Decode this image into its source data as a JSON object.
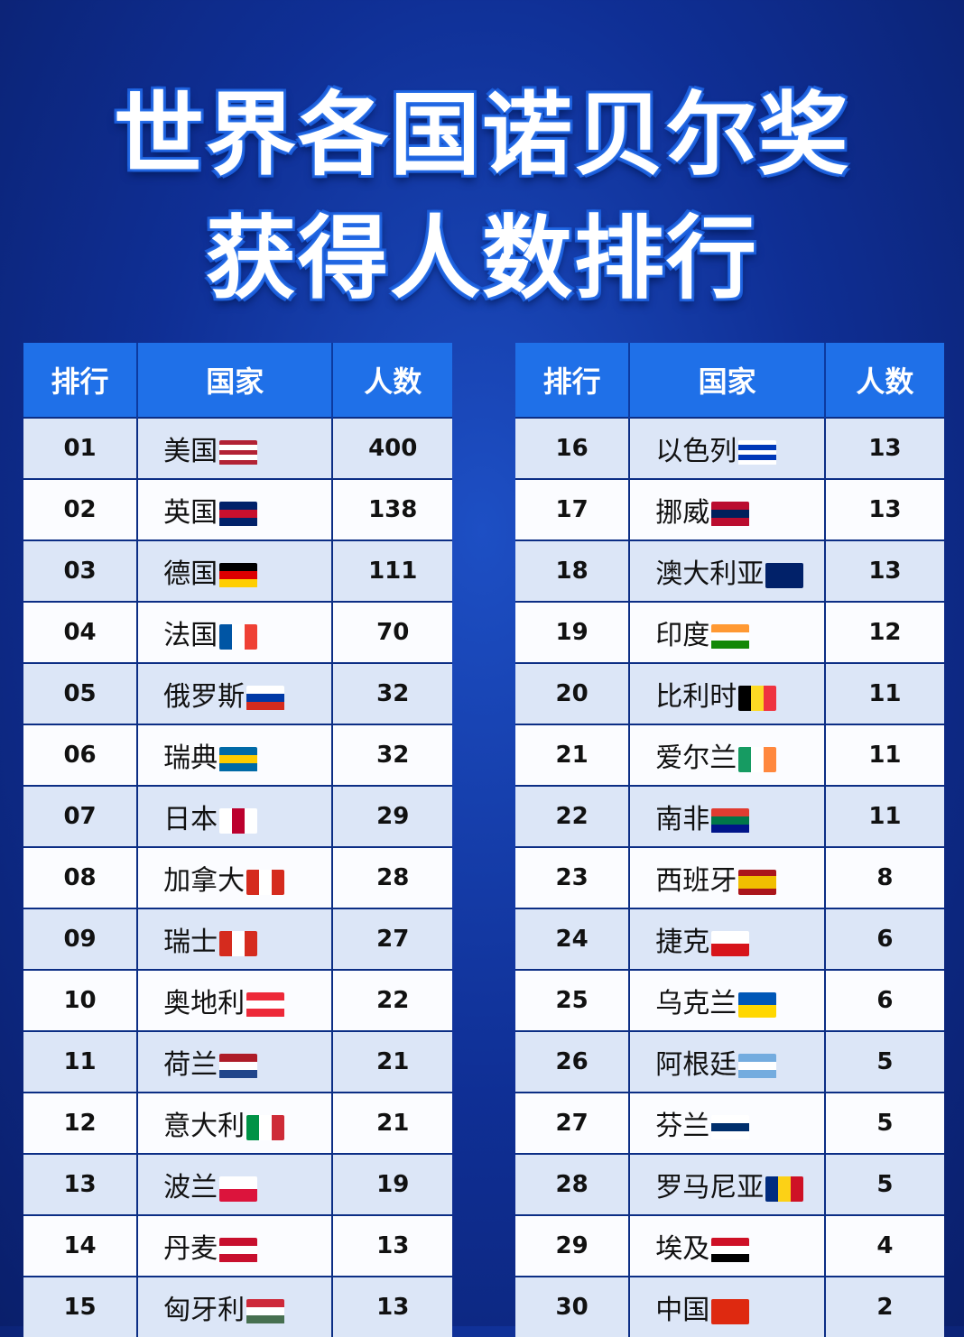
{
  "title": {
    "line1": "世界各国诺贝尔奖",
    "line2": "获得人数排行"
  },
  "headers": {
    "rank": "排行",
    "country": "国家",
    "count": "人数"
  },
  "left": [
    {
      "rank": "01",
      "country": "美国",
      "count": "400",
      "flag": {
        "dir": "column",
        "colors": [
          "#b22234",
          "#ffffff",
          "#b22234",
          "#ffffff",
          "#b22234"
        ]
      }
    },
    {
      "rank": "02",
      "country": "英国",
      "count": "138",
      "flag": {
        "dir": "column",
        "colors": [
          "#012169",
          "#c8102e",
          "#012169"
        ]
      }
    },
    {
      "rank": "03",
      "country": "德国",
      "count": "111",
      "flag": {
        "dir": "column",
        "colors": [
          "#000000",
          "#dd0000",
          "#ffce00"
        ]
      }
    },
    {
      "rank": "04",
      "country": "法国",
      "count": "70",
      "flag": {
        "dir": "row",
        "colors": [
          "#0055a4",
          "#ffffff",
          "#ef4135"
        ]
      }
    },
    {
      "rank": "05",
      "country": "俄罗斯",
      "count": "32",
      "flag": {
        "dir": "column",
        "colors": [
          "#ffffff",
          "#0039a6",
          "#d52b1e"
        ]
      }
    },
    {
      "rank": "06",
      "country": "瑞典",
      "count": "32",
      "flag": {
        "dir": "column",
        "colors": [
          "#006aa7",
          "#fecc00",
          "#006aa7"
        ]
      }
    },
    {
      "rank": "07",
      "country": "日本",
      "count": "29",
      "flag": {
        "dir": "row",
        "colors": [
          "#ffffff",
          "#bc002d",
          "#ffffff"
        ]
      }
    },
    {
      "rank": "08",
      "country": "加拿大",
      "count": "28",
      "flag": {
        "dir": "row",
        "colors": [
          "#d52b1e",
          "#ffffff",
          "#d52b1e"
        ]
      }
    },
    {
      "rank": "09",
      "country": "瑞士",
      "count": "27",
      "flag": {
        "dir": "row",
        "colors": [
          "#d52b1e",
          "#ffffff",
          "#d52b1e"
        ]
      }
    },
    {
      "rank": "10",
      "country": "奥地利",
      "count": "22",
      "flag": {
        "dir": "column",
        "colors": [
          "#ed2939",
          "#ffffff",
          "#ed2939"
        ]
      }
    },
    {
      "rank": "11",
      "country": "荷兰",
      "count": "21",
      "flag": {
        "dir": "column",
        "colors": [
          "#ae1c28",
          "#ffffff",
          "#21468b"
        ]
      }
    },
    {
      "rank": "12",
      "country": "意大利",
      "count": "21",
      "flag": {
        "dir": "row",
        "colors": [
          "#009246",
          "#ffffff",
          "#ce2b37"
        ]
      }
    },
    {
      "rank": "13",
      "country": "波兰",
      "count": "19",
      "flag": {
        "dir": "column",
        "colors": [
          "#ffffff",
          "#dc143c"
        ]
      }
    },
    {
      "rank": "14",
      "country": "丹麦",
      "count": "13",
      "flag": {
        "dir": "column",
        "colors": [
          "#c8102e",
          "#ffffff",
          "#c8102e"
        ]
      }
    },
    {
      "rank": "15",
      "country": "匈牙利",
      "count": "13",
      "flag": {
        "dir": "column",
        "colors": [
          "#ce2939",
          "#ffffff",
          "#477050"
        ]
      }
    }
  ],
  "right": [
    {
      "rank": "16",
      "country": "以色列",
      "count": "13",
      "flag": {
        "dir": "column",
        "colors": [
          "#ffffff",
          "#0038b8",
          "#ffffff",
          "#0038b8",
          "#ffffff"
        ]
      }
    },
    {
      "rank": "17",
      "country": "挪威",
      "count": "13",
      "flag": {
        "dir": "column",
        "colors": [
          "#ba0c2f",
          "#00205b",
          "#ba0c2f"
        ]
      }
    },
    {
      "rank": "18",
      "country": "澳大利亚",
      "count": "13",
      "flag": {
        "dir": "column",
        "colors": [
          "#012169",
          "#012169"
        ]
      }
    },
    {
      "rank": "19",
      "country": "印度",
      "count": "12",
      "flag": {
        "dir": "column",
        "colors": [
          "#ff9933",
          "#ffffff",
          "#138808"
        ]
      }
    },
    {
      "rank": "20",
      "country": "比利时",
      "count": "11",
      "flag": {
        "dir": "row",
        "colors": [
          "#000000",
          "#fdda24",
          "#ef3340"
        ]
      }
    },
    {
      "rank": "21",
      "country": "爱尔兰",
      "count": "11",
      "flag": {
        "dir": "row",
        "colors": [
          "#169b62",
          "#ffffff",
          "#ff883e"
        ]
      }
    },
    {
      "rank": "22",
      "country": "南非",
      "count": "11",
      "flag": {
        "dir": "column",
        "colors": [
          "#e03c31",
          "#007749",
          "#001489"
        ]
      }
    },
    {
      "rank": "23",
      "country": "西班牙",
      "count": "8",
      "flag": {
        "dir": "column",
        "colors": [
          "#aa151b",
          "#f1bf00",
          "#f1bf00",
          "#aa151b"
        ]
      }
    },
    {
      "rank": "24",
      "country": "捷克",
      "count": "6",
      "flag": {
        "dir": "column",
        "colors": [
          "#ffffff",
          "#d7141a"
        ]
      }
    },
    {
      "rank": "25",
      "country": "乌克兰",
      "count": "6",
      "flag": {
        "dir": "column",
        "colors": [
          "#0057b7",
          "#ffd700"
        ]
      }
    },
    {
      "rank": "26",
      "country": "阿根廷",
      "count": "5",
      "flag": {
        "dir": "column",
        "colors": [
          "#74acdf",
          "#ffffff",
          "#74acdf"
        ]
      }
    },
    {
      "rank": "27",
      "country": "芬兰",
      "count": "5",
      "flag": {
        "dir": "column",
        "colors": [
          "#ffffff",
          "#002f6c",
          "#ffffff"
        ]
      }
    },
    {
      "rank": "28",
      "country": "罗马尼亚",
      "count": "5",
      "flag": {
        "dir": "row",
        "colors": [
          "#002b7f",
          "#fcd116",
          "#ce1126"
        ]
      }
    },
    {
      "rank": "29",
      "country": "埃及",
      "count": "4",
      "flag": {
        "dir": "column",
        "colors": [
          "#ce1126",
          "#ffffff",
          "#000000"
        ]
      }
    },
    {
      "rank": "30",
      "country": "中国",
      "count": "2",
      "flag": {
        "dir": "column",
        "colors": [
          "#de2910",
          "#de2910"
        ]
      }
    }
  ]
}
